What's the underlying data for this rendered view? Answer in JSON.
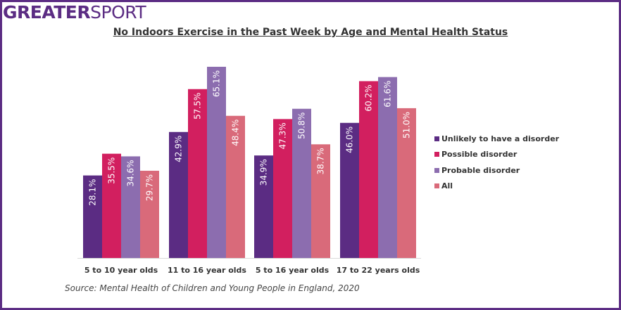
{
  "logo": {
    "part1": "GREATER",
    "part2": "SPORT"
  },
  "source": "Source: Mental Health of Children and Young People in England, 2020",
  "chart_data": {
    "type": "bar",
    "title": "No Indoors Exercise in the Past Week by Age and Mental Health Status",
    "xlabel": "",
    "ylabel": "",
    "ylim": [
      0,
      65.1
    ],
    "grid": false,
    "legend_position": "right",
    "categories": [
      "5 to 10 year olds",
      "11 to 16 year olds",
      "5 to 16 year olds",
      "17 to 22 years olds"
    ],
    "series": [
      {
        "name": "Unlikely to have a disorder",
        "color": "#5b2c83",
        "values": [
          28.1,
          42.9,
          34.9,
          46.0
        ],
        "labels": [
          "28.1%",
          "42.9%",
          "34.9%",
          "46.0%"
        ]
      },
      {
        "name": "Possible disorder",
        "color": "#d21f5f",
        "values": [
          35.5,
          57.5,
          47.3,
          60.2
        ],
        "labels": [
          "35.5%",
          "57.5%",
          "47.3%",
          "60.2%"
        ]
      },
      {
        "name": "Probable disorder",
        "color": "#8c6daf",
        "values": [
          34.6,
          65.1,
          50.8,
          61.6
        ],
        "labels": [
          "34.6%",
          "65.1%",
          "50.8%",
          "61.6%"
        ]
      },
      {
        "name": "All",
        "color": "#d96a7a",
        "values": [
          29.7,
          48.4,
          38.7,
          51.0
        ],
        "labels": [
          "29.7%",
          "48.4%",
          "38.7%",
          "51.0%"
        ]
      }
    ]
  }
}
